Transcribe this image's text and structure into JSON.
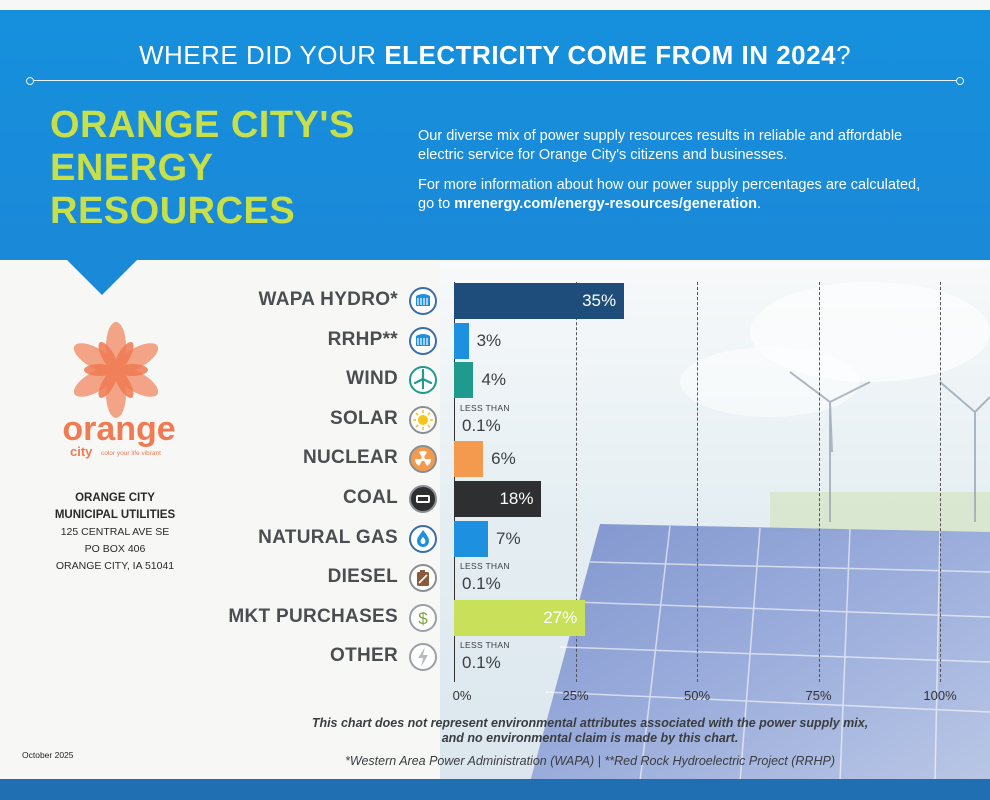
{
  "banner": {
    "title_prefix": "WHERE DID YOUR ",
    "title_bold": "ELECTRICITY COME FROM IN 2024",
    "title_suffix": "?",
    "heading_line1": "ORANGE CITY'S",
    "heading_line2": "ENERGY",
    "heading_line3": "RESOURCES",
    "paragraph1": "Our diverse mix of power supply resources results in reliable and affordable electric service for Orange City's citizens and businesses.",
    "paragraph2_text": "For more information about how our power supply percentages are calculated, go to ",
    "paragraph2_link": "mrenergy.com/energy-resources/generation",
    "paragraph2_end": "."
  },
  "logo": {
    "word": "orange",
    "sub_word": "city",
    "tagline": "color your life vibrant",
    "icon": "orange-flower-logo"
  },
  "org": {
    "name_line1": "ORANGE CITY",
    "name_line2": "MUNICIPAL UTILITIES",
    "address1": "125 CENTRAL AVE SE",
    "address2": "PO BOX 406",
    "address3": "ORANGE CITY, IA 51041"
  },
  "date": "October 2025",
  "colors": {
    "banner": "#1690dc",
    "heading": "#c7e04a",
    "wapa": "#1e4d7b",
    "rrhp": "#1e90e0",
    "wind": "#1f9a8c",
    "nuclear": "#f39a4e",
    "coal": "#2d2f30",
    "natural_gas": "#1e90e0",
    "market": "#c9e05a"
  },
  "chart_data": {
    "type": "bar",
    "orientation": "horizontal",
    "title": "WHERE DID YOUR ELECTRICITY COME FROM IN 2024?",
    "categories": [
      "WAPA HYDRO*",
      "RRHP**",
      "WIND",
      "SOLAR",
      "NUCLEAR",
      "COAL",
      "NATURAL GAS",
      "DIESEL",
      "MKT PURCHASES",
      "OTHER"
    ],
    "values": [
      35,
      3,
      4,
      0.1,
      6,
      18,
      7,
      0.1,
      27,
      0.1
    ],
    "value_labels": [
      "35%",
      "3%",
      "4%",
      "0.1%",
      "6%",
      "18%",
      "7%",
      "0.1%",
      "27%",
      "0.1%"
    ],
    "less_than": [
      false,
      false,
      false,
      true,
      false,
      false,
      false,
      true,
      false,
      true
    ],
    "less_than_text": "LESS THAN",
    "icons": [
      "hydro-dam-icon",
      "hydro-dam-icon",
      "wind-turbine-icon",
      "sun-icon",
      "radiation-icon",
      "coal-icon",
      "flame-icon",
      "fuel-can-icon",
      "dollar-icon",
      "lightning-icon"
    ],
    "colors": [
      "#1e4d7b",
      "#1e90e0",
      "#1f9a8c",
      "#f5c518",
      "#f39a4e",
      "#2d2f30",
      "#1e90e0",
      "#8a5a3c",
      "#c9e05a",
      "#9aa0a6"
    ],
    "xlim": [
      0,
      100
    ],
    "xticks": [
      "0%",
      "25%",
      "50%",
      "75%",
      "100%"
    ],
    "grid": true
  },
  "disclaimer_line1": "This chart does not represent environmental attributes associated with the power supply mix,",
  "disclaimer_line2": "and no environmental claim is made by this chart.",
  "footnote": "*Western Area Power Administration (WAPA) | **Red Rock Hydroelectric Project (RRHP)"
}
